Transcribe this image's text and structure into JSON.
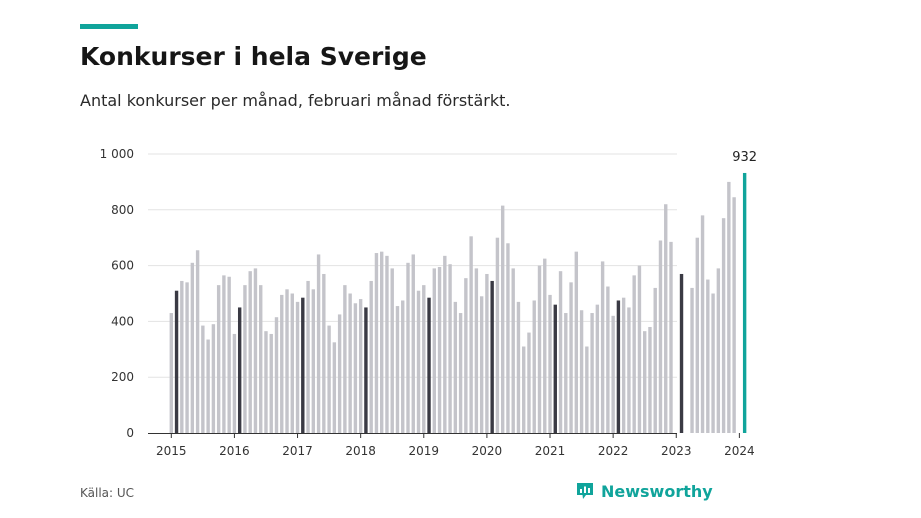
{
  "header": {
    "title": "Konkurser i hela Sverige",
    "subtitle": "Antal konkurser per månad, februari månad förstärkt."
  },
  "footer": {
    "source": "Källa: UC",
    "brand": "Newsworthy",
    "brand_icon": "newsworthy-logo-icon"
  },
  "colors": {
    "month_bar": "#c4c4ca",
    "february_bar": "#3a3a44",
    "latest_bar": "#10a49b",
    "gridline": "#e3e3e3",
    "accent": "#10a49b"
  },
  "chart_data": {
    "type": "bar",
    "title": "Konkurser i hela Sverige",
    "subtitle": "Antal konkurser per månad, februari månad förstärkt.",
    "xlabel": "",
    "ylabel": "",
    "ylim": [
      0,
      1000
    ],
    "y_ticks": [
      0,
      200,
      400,
      600,
      800,
      1000
    ],
    "y_tick_labels": [
      "0",
      "200",
      "400",
      "600",
      "800",
      "1 000"
    ],
    "x_tick_labels": [
      "2015",
      "2016",
      "2017",
      "2018",
      "2019",
      "2020",
      "2021",
      "2022",
      "2023",
      "2024"
    ],
    "grid": true,
    "start": "2015-01",
    "annotation": {
      "month": "2024-02",
      "text": "932"
    },
    "series": [
      {
        "values": [
          430,
          510,
          545,
          540,
          610,
          655,
          385,
          335,
          390,
          530,
          565,
          560,
          355,
          450,
          530,
          580,
          590,
          530,
          365,
          355,
          415,
          495,
          515,
          500,
          470,
          485,
          545,
          515,
          640,
          570,
          385,
          325,
          425,
          530,
          500,
          465,
          480,
          450,
          545,
          645,
          650,
          635,
          590,
          455,
          475,
          610,
          640,
          510,
          530,
          485,
          590,
          595,
          635,
          605,
          470,
          430,
          555,
          705,
          590,
          490,
          570,
          545,
          700,
          815,
          680,
          590,
          470,
          310,
          360,
          475,
          600,
          625,
          495,
          460,
          580,
          430,
          540,
          650,
          440,
          310,
          430,
          460,
          615,
          525,
          420,
          475,
          485,
          450,
          565,
          600,
          365,
          380,
          520,
          690,
          820,
          685,
          null,
          570,
          null,
          520,
          700,
          780,
          550,
          500,
          590,
          770,
          900,
          845,
          null,
          932
        ]
      }
    ]
  }
}
